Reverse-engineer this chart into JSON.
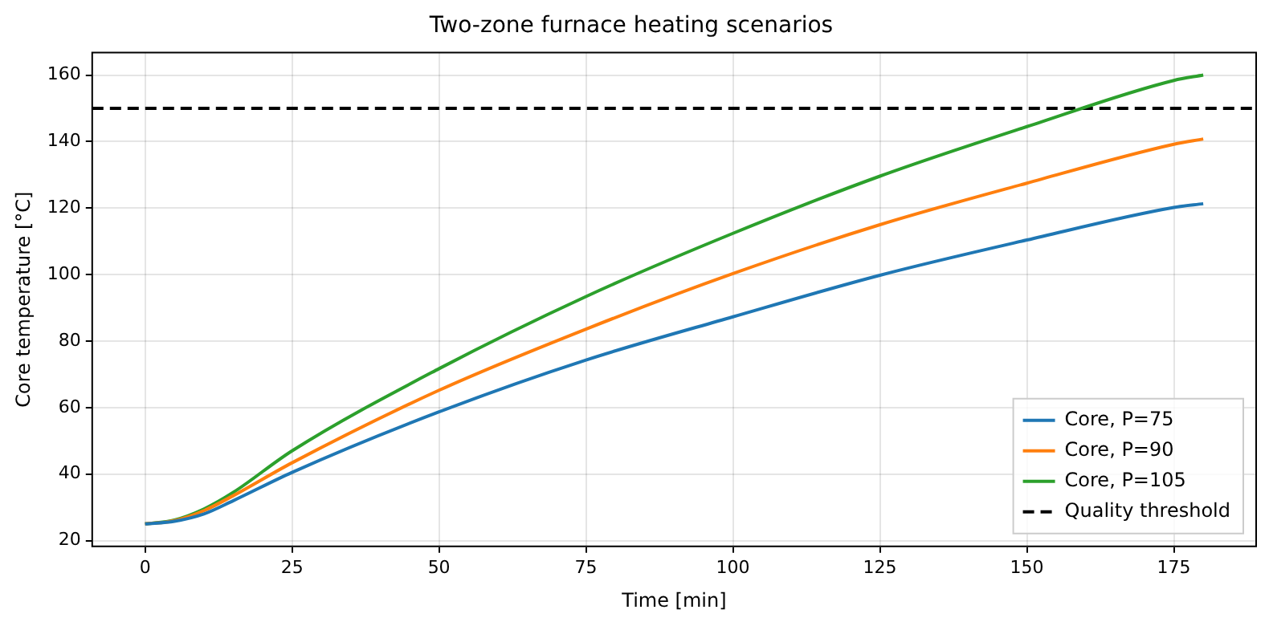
{
  "chart_data": {
    "type": "line",
    "title": "Two-zone furnace heating scenarios",
    "xlabel": "Time [min]",
    "ylabel": "Core temperature [°C]",
    "x": [
      0,
      5,
      10,
      15,
      25,
      50,
      75,
      100,
      125,
      150,
      175,
      180
    ],
    "series": [
      {
        "name": "Core, P=75",
        "color": "#1f77b4",
        "values": [
          25,
          25.8,
          28,
          32,
          40.5,
          58.7,
          74.3,
          87.3,
          99.8,
          110.4,
          120.2,
          121.3
        ]
      },
      {
        "name": "Core, P=90",
        "color": "#ff7f0e",
        "values": [
          25,
          26,
          29,
          33.5,
          43.4,
          65.2,
          83.6,
          100.3,
          115,
          127.5,
          139.2,
          140.8
        ]
      },
      {
        "name": "Core, P=105",
        "color": "#2ca02c",
        "values": [
          25,
          26.2,
          29.5,
          34.5,
          47,
          71.7,
          93.4,
          112.4,
          129.6,
          144.5,
          158.4,
          160
        ]
      }
    ],
    "ref_lines": [
      {
        "axis": "y",
        "value": 150,
        "label": "Quality threshold",
        "color": "#000000",
        "line_style": "dashed"
      }
    ],
    "xlim": [
      -9,
      189
    ],
    "ylim": [
      18.25,
      166.75
    ],
    "xticks": [
      0,
      25,
      50,
      75,
      100,
      125,
      150,
      175
    ],
    "yticks": [
      20,
      40,
      60,
      80,
      100,
      120,
      140,
      160
    ],
    "grid": true,
    "legend": "bottom right",
    "marker": "none",
    "line_style": "solid"
  }
}
